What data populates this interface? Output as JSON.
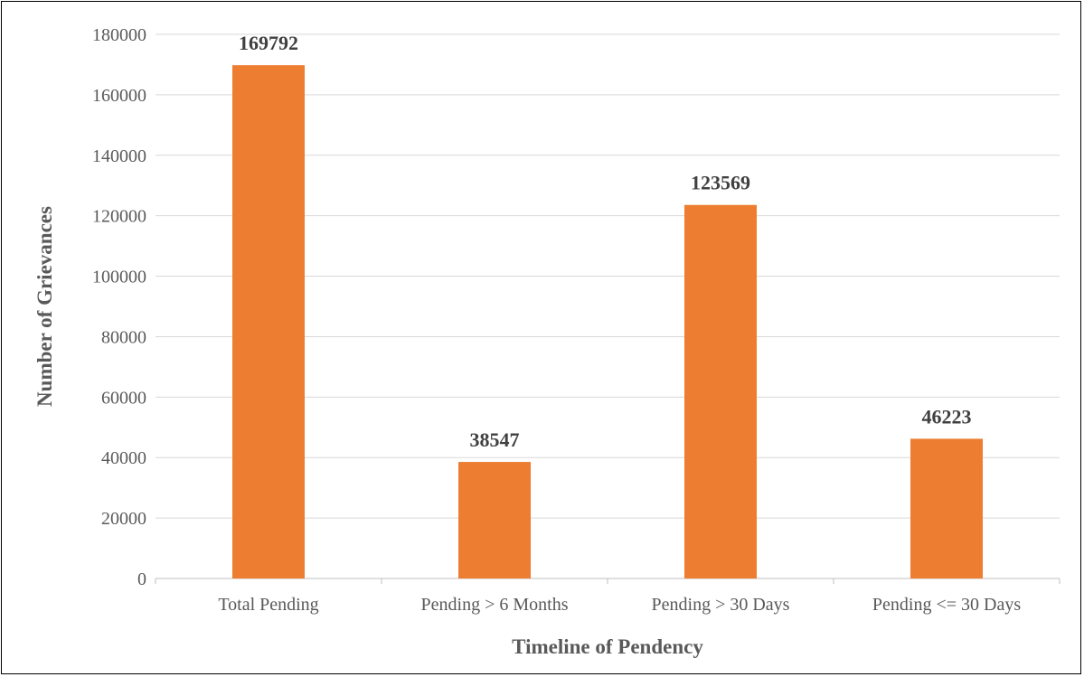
{
  "chart_data": {
    "type": "bar",
    "categories": [
      "Total Pending",
      "Pending > 6 Months",
      "Pending > 30 Days",
      "Pending <= 30 Days"
    ],
    "values": [
      169792,
      38547,
      123569,
      46223
    ],
    "data_labels": [
      "169792",
      "38547",
      "123569",
      "46223"
    ],
    "title": "",
    "xlabel": "Timeline of Pendency",
    "ylabel": "Number of Grievances",
    "ylim": [
      0,
      180000
    ],
    "yticks": [
      0,
      20000,
      40000,
      60000,
      80000,
      100000,
      120000,
      140000,
      160000,
      180000
    ],
    "ytick_labels": [
      "0",
      "20000",
      "40000",
      "60000",
      "80000",
      "100000",
      "120000",
      "140000",
      "160000",
      "180000"
    ],
    "grid": true,
    "legend": "none",
    "bar_color": "#ED7D31"
  }
}
